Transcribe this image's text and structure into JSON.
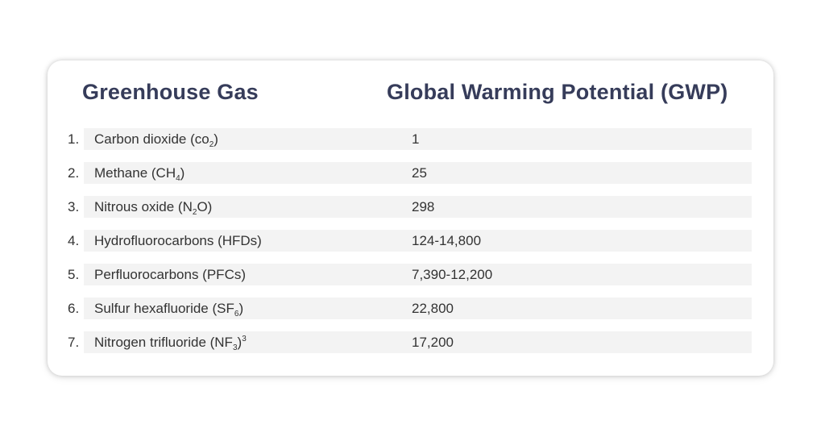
{
  "table": {
    "header_gas": "Greenhouse Gas",
    "header_gwp": "Global Warming Potential (GWP)",
    "rows": [
      {
        "num": "1.",
        "gas": {
          "pre": "Carbon dioxide (co",
          "sub": "2",
          "post": ")",
          "sup": ""
        },
        "gwp": "1"
      },
      {
        "num": "2.",
        "gas": {
          "pre": "Methane (CH",
          "sub": "4",
          "post": ")",
          "sup": ""
        },
        "gwp": "25"
      },
      {
        "num": "3.",
        "gas": {
          "pre": "Nitrous oxide (N",
          "sub": "2",
          "post": "O)",
          "sup": ""
        },
        "gwp": "298"
      },
      {
        "num": "4.",
        "gas": {
          "pre": "Hydrofluorocarbons (HFDs)",
          "sub": "",
          "post": "",
          "sup": ""
        },
        "gwp": "124-14,800"
      },
      {
        "num": "5.",
        "gas": {
          "pre": "Perfluorocarbons (PFCs)",
          "sub": "",
          "post": "",
          "sup": ""
        },
        "gwp": "7,390-12,200"
      },
      {
        "num": "6.",
        "gas": {
          "pre": "Sulfur hexafluoride (SF",
          "sub": "6",
          "post": ")",
          "sup": ""
        },
        "gwp": "22,800"
      },
      {
        "num": "7.",
        "gas": {
          "pre": "Nitrogen trifluoride (NF",
          "sub": "3",
          "post": ")",
          "sup": "3"
        },
        "gwp": "17,200"
      }
    ]
  },
  "colors": {
    "header_text": "#363c5a",
    "body_text": "#333333",
    "row_band": "#f3f3f3"
  }
}
